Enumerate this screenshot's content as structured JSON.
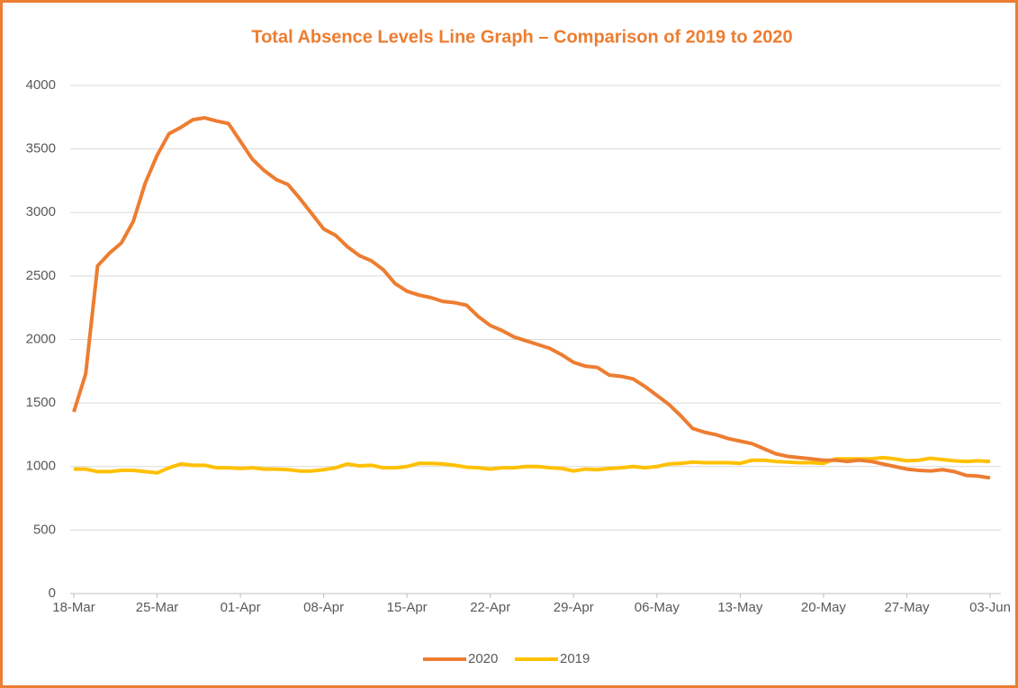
{
  "chart_data": {
    "type": "line",
    "title": "Total Absence Levels Line Graph – Comparison of 2019 to 2020",
    "categories": [
      "18-Mar",
      null,
      null,
      null,
      null,
      null,
      null,
      "25-Mar",
      null,
      null,
      null,
      null,
      null,
      null,
      "01-Apr",
      null,
      null,
      null,
      null,
      null,
      null,
      "08-Apr",
      null,
      null,
      null,
      null,
      null,
      null,
      "15-Apr",
      null,
      null,
      null,
      null,
      null,
      null,
      "22-Apr",
      null,
      null,
      null,
      null,
      null,
      null,
      "29-Apr",
      null,
      null,
      null,
      null,
      null,
      null,
      "06-May",
      null,
      null,
      null,
      null,
      null,
      null,
      "13-May",
      null,
      null,
      null,
      null,
      null,
      null,
      "20-May",
      null,
      null,
      null,
      null,
      null,
      null,
      "27-May",
      null,
      null,
      null,
      null,
      null,
      null,
      "03-Jun"
    ],
    "series": [
      {
        "name": "2020",
        "color": "#ED7D31",
        "values": [
          1430,
          1730,
          2580,
          2680,
          2760,
          2930,
          3230,
          3450,
          3620,
          3670,
          3730,
          3745,
          3720,
          3700,
          3560,
          3420,
          3330,
          3260,
          3220,
          3110,
          2990,
          2870,
          2820,
          2730,
          2660,
          2620,
          2550,
          2440,
          2380,
          2350,
          2330,
          2300,
          2290,
          2270,
          2180,
          2110,
          2070,
          2020,
          1990,
          1960,
          1930,
          1880,
          1820,
          1790,
          1780,
          1720,
          1710,
          1690,
          1630,
          1560,
          1490,
          1400,
          1300,
          1270,
          1250,
          1220,
          1200,
          1180,
          1140,
          1100,
          1080,
          1070,
          1060,
          1050,
          1050,
          1040,
          1050,
          1040,
          1020,
          1000,
          980,
          970,
          965,
          975,
          960,
          930,
          925,
          910
        ]
      },
      {
        "name": "2019",
        "color": "#FFC000",
        "values": [
          980,
          980,
          960,
          960,
          970,
          970,
          960,
          950,
          990,
          1020,
          1010,
          1010,
          990,
          990,
          985,
          990,
          980,
          980,
          975,
          965,
          965,
          975,
          990,
          1020,
          1005,
          1010,
          990,
          990,
          1000,
          1025,
          1025,
          1020,
          1010,
          995,
          990,
          980,
          990,
          990,
          1000,
          1000,
          990,
          985,
          965,
          980,
          975,
          985,
          990,
          1000,
          990,
          1000,
          1020,
          1025,
          1035,
          1030,
          1030,
          1030,
          1025,
          1050,
          1050,
          1040,
          1035,
          1030,
          1030,
          1025,
          1060,
          1060,
          1060,
          1060,
          1070,
          1060,
          1045,
          1050,
          1065,
          1055,
          1045,
          1040,
          1045,
          1040
        ]
      }
    ],
    "ylim": [
      0,
      4000
    ],
    "yticks": [
      0,
      500,
      1000,
      1500,
      2000,
      2500,
      3000,
      3500,
      4000
    ],
    "grid": true,
    "legend": "bottom"
  }
}
